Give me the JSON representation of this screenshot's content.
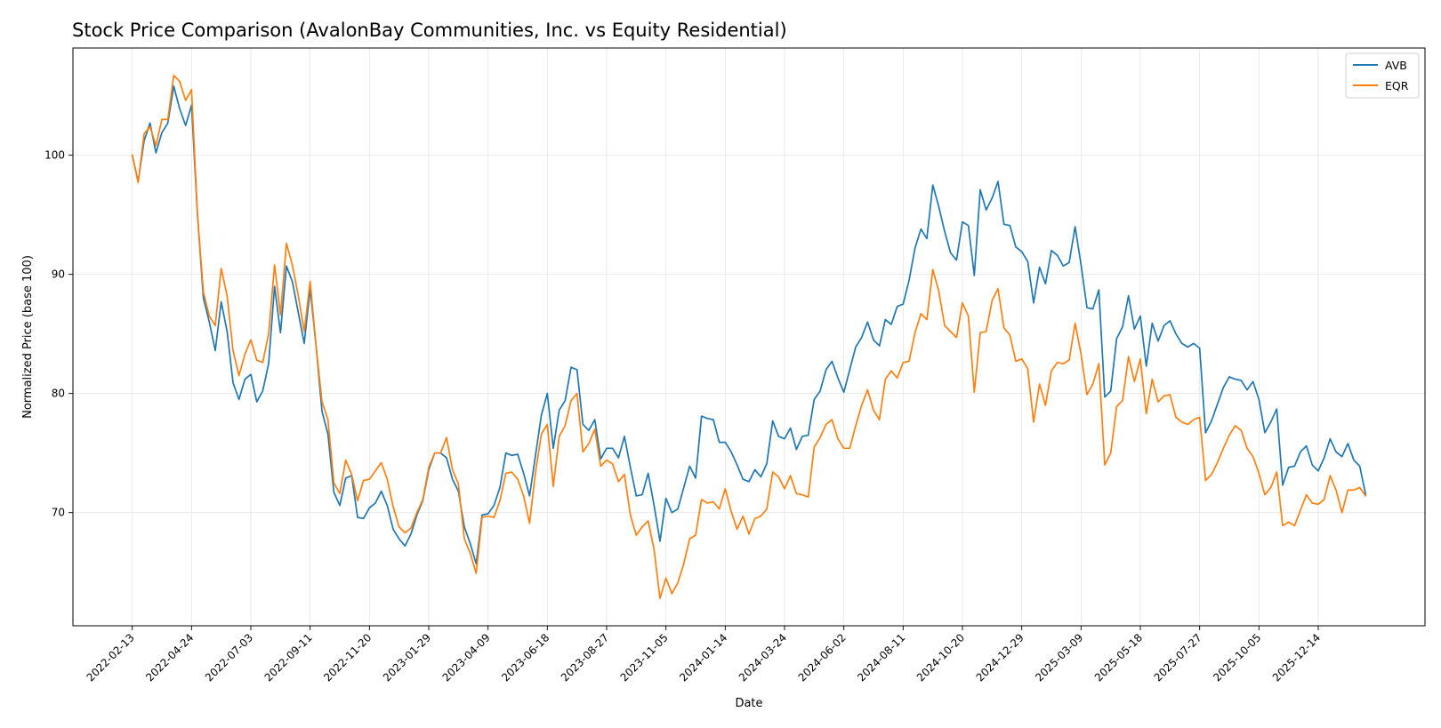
{
  "chart_data": {
    "type": "line",
    "title": "Stock Price Comparison (AvalonBay Communities, Inc. vs Equity Residential)",
    "xlabel": "Date",
    "ylabel": "Normalized Price (base 100)",
    "x_range": [
      "2022-02-13",
      "2026-02-08"
    ],
    "x_padding_weeks": 10,
    "ylim": [
      60.5,
      109
    ],
    "yticks": [
      70,
      80,
      90,
      100
    ],
    "xticks": [
      "2022-02-13",
      "2022-04-24",
      "2022-07-03",
      "2022-09-11",
      "2022-11-20",
      "2023-01-29",
      "2023-04-09",
      "2023-06-18",
      "2023-08-27",
      "2023-11-05",
      "2024-01-14",
      "2024-03-24",
      "2024-06-02",
      "2024-08-11",
      "2024-10-20",
      "2024-12-29",
      "2025-03-09",
      "2025-05-18",
      "2025-07-27",
      "2025-10-05",
      "2025-12-14"
    ],
    "grid": true,
    "legend_position": "top-right",
    "start_date": "2022-02-13",
    "step_weeks": 1,
    "series": [
      {
        "name": "AVB",
        "color": "#1f77b4",
        "values": [
          100,
          97.8,
          101.2,
          102.7,
          100.2,
          101.9,
          102.7,
          105.8,
          103.9,
          102.5,
          104.2,
          95,
          88,
          86,
          83.6,
          87.7,
          85.2,
          80.9,
          79.5,
          81.2,
          81.6,
          79.3,
          80.2,
          82.5,
          89,
          85.1,
          90.7,
          89.4,
          86.8,
          84.2,
          88.8,
          84,
          78.5,
          76.6,
          71.7,
          70.6,
          72.9,
          73.1,
          69.6,
          69.5,
          70.4,
          70.8,
          71.8,
          70.6,
          68.6,
          67.8,
          67.2,
          68.2,
          69.8,
          71,
          73.6,
          75,
          75,
          74.6,
          72.8,
          71.8,
          68.8,
          67.4,
          65.7,
          69.8,
          69.9,
          70.6,
          72.1,
          75,
          74.8,
          74.9,
          73.3,
          71.4,
          74.8,
          78.2,
          80,
          75.4,
          78.6,
          79.4,
          82.2,
          82,
          77.4,
          76.9,
          77.8,
          74.5,
          75.4,
          75.4,
          74.6,
          76.4,
          73.8,
          71.4,
          71.5,
          73.3,
          70.6,
          67.6,
          71.2,
          70,
          70.3,
          72.1,
          73.9,
          72.9,
          78.1,
          77.9,
          77.8,
          75.9,
          75.9,
          75.1,
          74,
          72.8,
          72.6,
          73.6,
          73,
          74.1,
          77.7,
          76.4,
          76.2,
          77.1,
          75.3,
          76.4,
          76.5,
          79.5,
          80.2,
          82,
          82.7,
          81.3,
          80.1,
          82,
          83.9,
          84.7,
          86,
          84.5,
          84,
          86.2,
          85.8,
          87.3,
          87.5,
          89.5,
          92.2,
          93.8,
          93,
          97.5,
          95.7,
          93.6,
          91.8,
          91.2,
          94.4,
          94.1,
          89.9,
          97.1,
          95.4,
          96.4,
          97.8,
          94.2,
          94.1,
          92.3,
          91.9,
          91.1,
          87.6,
          90.6,
          89.2,
          92,
          91.6,
          90.7,
          91,
          94,
          90.8,
          87.2,
          87.1,
          88.7,
          79.7,
          80.2,
          84.6,
          85.6,
          88.2,
          85.4,
          86.5,
          82.3,
          85.9,
          84.4,
          85.7,
          86.1,
          85,
          84.2,
          83.9,
          84.2,
          83.8,
          76.7,
          77.7,
          79.1,
          80.5,
          81.4,
          81.2,
          81.1,
          80.3,
          81,
          79.5,
          76.7,
          77.6,
          78.7,
          72.3,
          73.8,
          73.9,
          75.1,
          75.6,
          74,
          73.5,
          74.6,
          76.2,
          75.1,
          74.7,
          75.8,
          74.4,
          73.9,
          71.5
        ]
      },
      {
        "name": "EQR",
        "color": "#ff7f0e",
        "values": [
          100,
          97.7,
          101.8,
          102.4,
          100.8,
          103,
          103,
          106.7,
          106.2,
          104.6,
          105.5,
          95,
          88.5,
          86.5,
          85.7,
          90.5,
          88.2,
          83.6,
          81.5,
          83.3,
          84.5,
          82.8,
          82.6,
          85,
          90.8,
          86.6,
          92.6,
          90.8,
          88.2,
          85.2,
          89.4,
          84,
          79.3,
          77.8,
          72.5,
          71.6,
          74.4,
          73.2,
          71,
          72.7,
          72.8,
          73.5,
          74.2,
          72.8,
          70.5,
          68.8,
          68.3,
          68.7,
          70,
          71.1,
          73.8,
          75,
          75,
          76.3,
          73.6,
          72.4,
          67.8,
          66.6,
          64.9,
          69.6,
          69.7,
          69.6,
          71,
          73.3,
          73.4,
          72.8,
          71.4,
          69.1,
          73.4,
          76.6,
          77.4,
          72.2,
          76.4,
          77.3,
          79.4,
          80,
          75.1,
          75.8,
          77,
          73.9,
          74.4,
          74.1,
          72.6,
          73.2,
          69.8,
          68.1,
          68.8,
          69.3,
          66.9,
          62.8,
          64.5,
          63.2,
          64.1,
          65.7,
          67.8,
          68.1,
          71.1,
          70.8,
          70.9,
          70.3,
          72,
          70.1,
          68.6,
          69.7,
          68.2,
          69.5,
          69.7,
          70.3,
          73.4,
          73,
          72,
          73.1,
          71.6,
          71.5,
          71.3,
          75.5,
          76.3,
          77.4,
          77.8,
          76.2,
          75.4,
          75.4,
          77.3,
          79,
          80.3,
          78.6,
          77.8,
          81.2,
          81.9,
          81.3,
          82.6,
          82.7,
          85.1,
          86.7,
          86.2,
          90.4,
          88.6,
          85.7,
          85.2,
          84.7,
          87.6,
          86.5,
          80.1,
          85.1,
          85.2,
          87.8,
          88.8,
          85.5,
          84.9,
          82.7,
          82.9,
          82.1,
          77.6,
          80.8,
          79,
          81.9,
          82.6,
          82.5,
          82.8,
          85.9,
          83.3,
          79.9,
          80.8,
          82.5,
          74,
          75,
          78.9,
          79.4,
          83.1,
          81,
          82.9,
          78.3,
          81.2,
          79.3,
          79.8,
          79.9,
          78,
          77.6,
          77.4,
          77.8,
          78,
          72.7,
          73.2,
          74.2,
          75.4,
          76.5,
          77.3,
          76.9,
          75.4,
          74.7,
          73.3,
          71.5,
          72.1,
          73.4,
          68.9,
          69.2,
          68.9,
          70.2,
          71.5,
          70.8,
          70.7,
          71.1,
          73.1,
          71.9,
          70,
          71.9,
          71.9,
          72.1,
          71.4
        ]
      }
    ]
  }
}
